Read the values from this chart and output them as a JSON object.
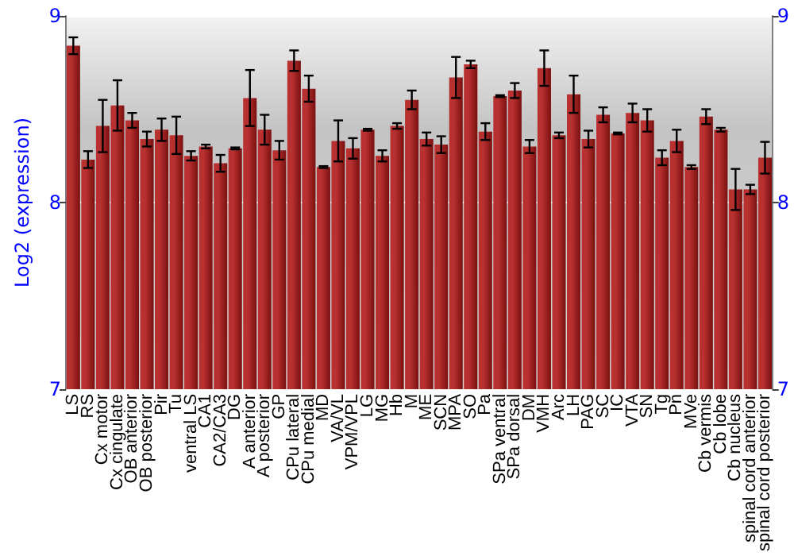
{
  "chart_data": {
    "type": "bar",
    "ylabel": "Log2 (expression)",
    "categories": [
      "LS",
      "RS",
      "Cx motor",
      "Cx cingulate",
      "OB anterior",
      "OB posterior",
      "Pir",
      "Tu",
      "ventral LS",
      "CA1",
      "CA2/CA3",
      "DG",
      "A anterior",
      "A posterior",
      "GP",
      "CPu lateral",
      "CPu medial",
      "MD",
      "VA/VL",
      "VPM/VPL",
      "LG",
      "MG",
      "Hb",
      "M",
      "ME",
      "SCN",
      "MPA",
      "SO",
      "Pa",
      "SPa ventral",
      "SPa dorsal",
      "DM",
      "VMH",
      "Arc",
      "LH",
      "PAG",
      "SC",
      "IC",
      "VTA",
      "SN",
      "Tg",
      "Pn",
      "MVe",
      "Cb vermis",
      "Cb lobe",
      "Cb nucleus",
      "spinal cord anterior",
      "spinal cord posterior"
    ],
    "values": [
      8.84,
      8.23,
      8.41,
      8.52,
      8.44,
      8.34,
      8.39,
      8.36,
      8.25,
      8.3,
      8.21,
      8.29,
      8.56,
      8.39,
      8.28,
      8.76,
      8.61,
      8.19,
      8.33,
      8.29,
      8.39,
      8.25,
      8.41,
      8.55,
      8.34,
      8.31,
      8.67,
      8.74,
      8.38,
      8.57,
      8.6,
      8.3,
      8.72,
      8.36,
      8.58,
      8.34,
      8.47,
      8.37,
      8.48,
      8.44,
      8.24,
      8.33,
      8.19,
      8.46,
      8.39,
      8.07,
      8.07,
      8.24
    ],
    "errors": [
      0.045,
      0.045,
      0.14,
      0.135,
      0.04,
      0.04,
      0.06,
      0.1,
      0.025,
      0.01,
      0.045,
      0.005,
      0.15,
      0.08,
      0.05,
      0.055,
      0.07,
      0.005,
      0.11,
      0.055,
      0.005,
      0.03,
      0.015,
      0.05,
      0.035,
      0.045,
      0.11,
      0.02,
      0.045,
      0.005,
      0.04,
      0.035,
      0.095,
      0.015,
      0.1,
      0.045,
      0.04,
      0.005,
      0.05,
      0.06,
      0.04,
      0.06,
      0.01,
      0.04,
      0.01,
      0.11,
      0.025,
      0.085
    ],
    "color": "#b83030",
    "ylim": [
      7,
      9
    ],
    "yticks": [
      7,
      8,
      9
    ],
    "y2lim": [
      7,
      9
    ],
    "y2ticks": [
      7,
      8,
      9
    ],
    "grid": "y"
  }
}
